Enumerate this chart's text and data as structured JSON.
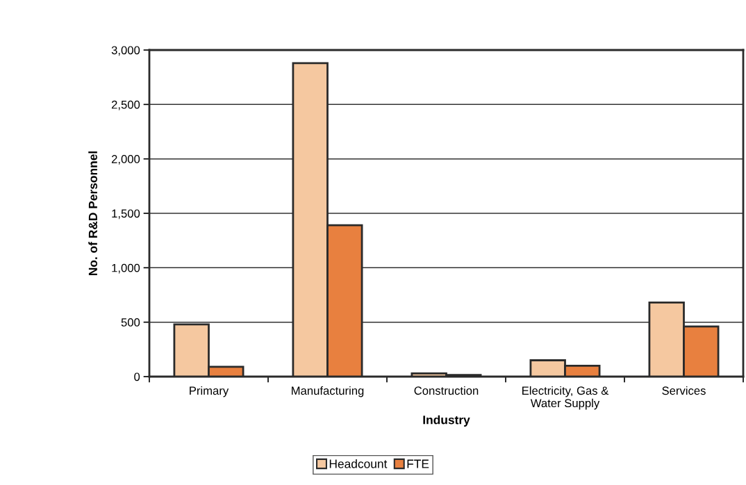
{
  "chart_data": {
    "type": "bar",
    "xlabel": "Industry",
    "ylabel": "No. of R&D Personnel",
    "categories": [
      "Primary",
      "Manufacturing",
      "Construction",
      "Electricity, Gas &\nWater Supply",
      "Services"
    ],
    "series": [
      {
        "name": "Headcount",
        "color": "#f5c8a0",
        "values": [
          480,
          2880,
          30,
          150,
          680
        ]
      },
      {
        "name": "FTE",
        "color": "#e8803f",
        "values": [
          90,
          1390,
          15,
          100,
          460
        ]
      }
    ],
    "ylim": [
      0,
      3000
    ],
    "yticks": [
      0,
      500,
      {
        "value": 1000,
        "label": "1,000"
      },
      {
        "value": 1500,
        "label": "1,500"
      },
      {
        "value": 2000,
        "label": "2,000"
      },
      {
        "value": 2500,
        "label": "2,500"
      },
      {
        "value": 3000,
        "label": "3,000"
      }
    ],
    "grid": "y",
    "legend": "bottom"
  }
}
